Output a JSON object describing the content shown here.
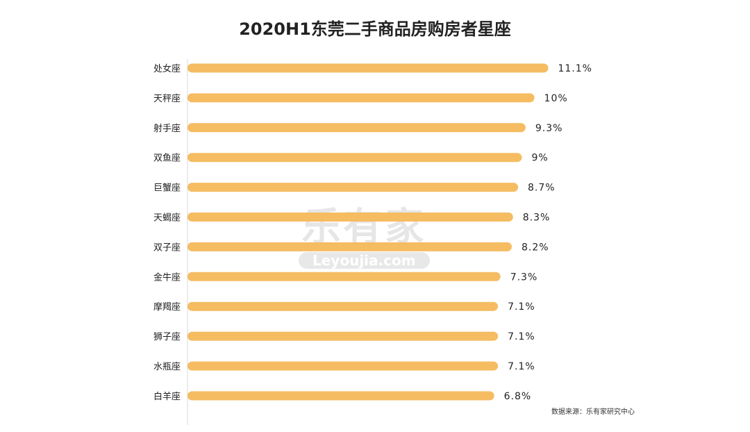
{
  "chart_data": {
    "type": "bar",
    "orientation": "horizontal",
    "title": "2020H1东莞二手商品房购房者星座",
    "categories": [
      "处女座",
      "天秤座",
      "射手座",
      "双鱼座",
      "巨蟹座",
      "天蝎座",
      "双子座",
      "金牛座",
      "摩羯座",
      "狮子座",
      "水瓶座",
      "白羊座"
    ],
    "values": [
      11.1,
      10,
      9.3,
      9,
      8.7,
      8.3,
      8.2,
      7.3,
      7.1,
      7.1,
      7.1,
      6.8
    ],
    "value_labels": [
      "11.1%",
      "10%",
      "9.3%",
      "9%",
      "8.7%",
      "8.3%",
      "8.2%",
      "7.3%",
      "7.1%",
      "7.1%",
      "7.1%",
      "6.8%"
    ],
    "unit": "%",
    "bar_color": "#F5BC62",
    "grid": false,
    "source": "数据来源：乐有家研究中心"
  },
  "watermark": {
    "brand": "乐有家",
    "domain": "Leyoujia.com"
  }
}
